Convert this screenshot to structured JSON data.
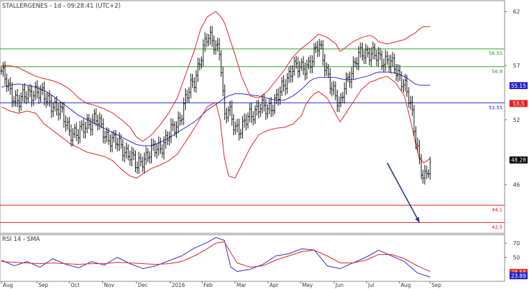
{
  "chart_data": [
    {
      "panel": "price",
      "type": "line",
      "title": "STALLERGENES - 1d - 09:28:41 (UTC+2)",
      "ylim": [
        41.5,
        63
      ],
      "y_ticks": [
        {
          "value": 62,
          "label": "62"
        },
        {
          "value": 57,
          "label": "57"
        },
        {
          "value": 52,
          "label": "52"
        },
        {
          "value": 46,
          "label": "46"
        }
      ],
      "x_ticks": [
        "Aug",
        "Sep",
        "Oct",
        "Nov",
        "Dec",
        "2016",
        "Feb",
        "Mar",
        "Apr",
        "May",
        "Jun",
        "Jul",
        "Aug",
        "Sep"
      ],
      "x_tick_t": [
        0,
        0.083,
        0.158,
        0.236,
        0.315,
        0.394,
        0.468,
        0.545,
        0.622,
        0.698,
        0.776,
        0.852,
        0.928,
        1.0
      ],
      "price_series": {
        "name": "Close",
        "x": [
          0,
          0.02,
          0.04,
          0.06,
          0.08,
          0.1,
          0.12,
          0.14,
          0.16,
          0.18,
          0.2,
          0.22,
          0.24,
          0.26,
          0.28,
          0.3,
          0.315,
          0.33,
          0.35,
          0.37,
          0.39,
          0.41,
          0.43,
          0.45,
          0.465,
          0.48,
          0.5,
          0.51,
          0.52,
          0.53,
          0.545,
          0.56,
          0.58,
          0.6,
          0.62,
          0.64,
          0.66,
          0.68,
          0.7,
          0.71,
          0.72,
          0.73,
          0.74,
          0.76,
          0.78,
          0.79,
          0.8,
          0.82,
          0.84,
          0.86,
          0.87,
          0.88,
          0.9,
          0.92,
          0.94,
          0.955,
          0.965,
          0.975,
          0.985,
          1.0
        ],
        "values": [
          56.5,
          54.5,
          53.8,
          54.2,
          54.8,
          54.0,
          53.5,
          52.5,
          51.0,
          50.5,
          51.8,
          52.0,
          50.8,
          50.0,
          49.5,
          48.8,
          47.5,
          48.5,
          49.0,
          49.5,
          50.5,
          51.5,
          54.0,
          55.5,
          58.0,
          59.5,
          59.0,
          58.5,
          52.0,
          52.8,
          51.5,
          51.0,
          52.5,
          53.2,
          52.8,
          54.0,
          55.0,
          57.2,
          56.5,
          56.8,
          57.5,
          58.2,
          58.8,
          56.5,
          53.8,
          53.0,
          55.5,
          56.5,
          58.5,
          58.0,
          57.8,
          57.8,
          57.5,
          56.5,
          55.5,
          53.0,
          50.5,
          48.5,
          46.5,
          47.5
        ]
      },
      "overlays": [
        {
          "name": "SMA",
          "color": "#2b2bc9",
          "values": [
            55.0,
            55.2,
            55.3,
            55.2,
            55.0,
            54.7,
            54.2,
            53.6,
            53.0,
            52.4,
            52.0,
            51.6,
            51.2,
            50.8,
            50.4,
            50.0,
            49.7,
            49.6,
            49.6,
            49.9,
            50.3,
            50.8,
            51.3,
            51.8,
            52.3,
            52.9,
            53.4,
            53.7,
            54.0,
            54.2,
            54.4,
            54.4,
            54.3,
            54.2,
            54.0,
            53.8,
            53.8,
            54.2,
            54.8,
            55.2,
            55.6,
            55.8,
            55.9,
            55.9,
            55.9,
            55.8,
            55.7,
            55.7,
            55.9,
            56.1,
            56.3,
            56.4,
            56.4,
            56.3,
            56.0,
            55.6,
            55.3,
            55.2,
            55.2,
            55.2
          ]
        },
        {
          "name": "Bollinger Upper",
          "color": "#e02020",
          "values": [
            57.0,
            57.0,
            56.8,
            56.4,
            56.0,
            55.8,
            55.6,
            55.3,
            54.8,
            54.0,
            53.5,
            53.3,
            53.0,
            52.6,
            52.0,
            51.3,
            50.4,
            50.0,
            50.6,
            51.5,
            52.6,
            54.0,
            56.2,
            58.4,
            60.4,
            61.5,
            62.0,
            61.6,
            61.0,
            59.8,
            58.0,
            56.0,
            54.2,
            54.0,
            54.6,
            55.6,
            56.6,
            57.8,
            58.6,
            58.9,
            59.2,
            59.6,
            59.9,
            59.6,
            59.0,
            58.3,
            58.6,
            59.2,
            59.6,
            59.8,
            59.6,
            59.2,
            59.0,
            59.2,
            59.4,
            59.8,
            60.0,
            60.4,
            60.6,
            60.6
          ]
        },
        {
          "name": "Bollinger Lower",
          "color": "#e02020",
          "values": [
            53.2,
            52.8,
            52.6,
            52.8,
            52.6,
            51.6,
            51.0,
            50.4,
            49.8,
            49.4,
            49.0,
            48.8,
            48.6,
            48.2,
            47.4,
            46.8,
            46.6,
            47.0,
            47.5,
            47.8,
            48.2,
            48.8,
            50.0,
            51.2,
            52.2,
            53.2,
            53.6,
            52.0,
            48.5,
            46.8,
            46.6,
            47.8,
            49.4,
            50.6,
            51.0,
            51.2,
            51.3,
            51.6,
            52.4,
            53.4,
            54.0,
            54.4,
            54.6,
            54.0,
            52.5,
            51.8,
            52.4,
            53.6,
            54.8,
            55.5,
            55.6,
            55.8,
            56.0,
            55.4,
            54.2,
            51.8,
            50.0,
            48.4,
            48.0,
            48.4
          ]
        }
      ],
      "horizontal_levels": [
        {
          "value": 58.55,
          "label": "58.55",
          "color": "#2e9e2e"
        },
        {
          "value": 56.9,
          "label": "56.9",
          "color": "#2e9e2e"
        },
        {
          "value": 53.55,
          "label": "53.55",
          "color": "#2222dd"
        },
        {
          "value": 44.1,
          "label": "44.1",
          "color": "#dd2222"
        },
        {
          "value": 42.5,
          "label": "42.5",
          "color": "#dd2222"
        }
      ],
      "value_tags": [
        {
          "value": 55.15,
          "label": "55.15",
          "color": "#2222cc"
        },
        {
          "value": 53.5,
          "label": "53.5",
          "color": "#dd2222"
        },
        {
          "value": 48.28,
          "label": "48.28",
          "color": "#000000"
        }
      ],
      "arrow": {
        "from": [
          0.9,
          48.0
        ],
        "to": [
          0.975,
          42.5
        ],
        "color": "#1a3a8f"
      }
    },
    {
      "panel": "indicator",
      "type": "line",
      "title": "RSI 14 - SMA",
      "ylim": [
        16,
        82
      ],
      "y_ticks": [
        {
          "value": 70,
          "label": "70"
        },
        {
          "value": 50,
          "label": "50"
        }
      ],
      "x": [
        0,
        0.03,
        0.06,
        0.09,
        0.12,
        0.15,
        0.18,
        0.21,
        0.24,
        0.27,
        0.3,
        0.33,
        0.36,
        0.39,
        0.42,
        0.45,
        0.48,
        0.5,
        0.52,
        0.535,
        0.55,
        0.58,
        0.61,
        0.64,
        0.67,
        0.7,
        0.73,
        0.76,
        0.79,
        0.82,
        0.85,
        0.88,
        0.91,
        0.94,
        0.97,
        1.0
      ],
      "series": [
        {
          "name": "RSI 14",
          "color": "#2b2bc9",
          "values": [
            46,
            38,
            44,
            36,
            48,
            40,
            35,
            44,
            39,
            50,
            41,
            34,
            38,
            45,
            52,
            63,
            71,
            78,
            74,
            36,
            30,
            33,
            40,
            52,
            55,
            62,
            60,
            38,
            34,
            42,
            50,
            60,
            52,
            44,
            28,
            22
          ]
        },
        {
          "name": "SMA",
          "color": "#e02020",
          "values": [
            44,
            43,
            42,
            41,
            42,
            41,
            40,
            41,
            41,
            43,
            42,
            41,
            40,
            41,
            44,
            52,
            62,
            70,
            72,
            56,
            42,
            36,
            38,
            46,
            52,
            58,
            60,
            52,
            42,
            42,
            46,
            54,
            54,
            48,
            38,
            30
          ]
        }
      ],
      "value_tags": [
        {
          "value": 28.58,
          "label": "28.58",
          "color": "#dd2222"
        },
        {
          "value": 23.89,
          "label": "23.89",
          "color": "#2222cc"
        }
      ]
    }
  ]
}
